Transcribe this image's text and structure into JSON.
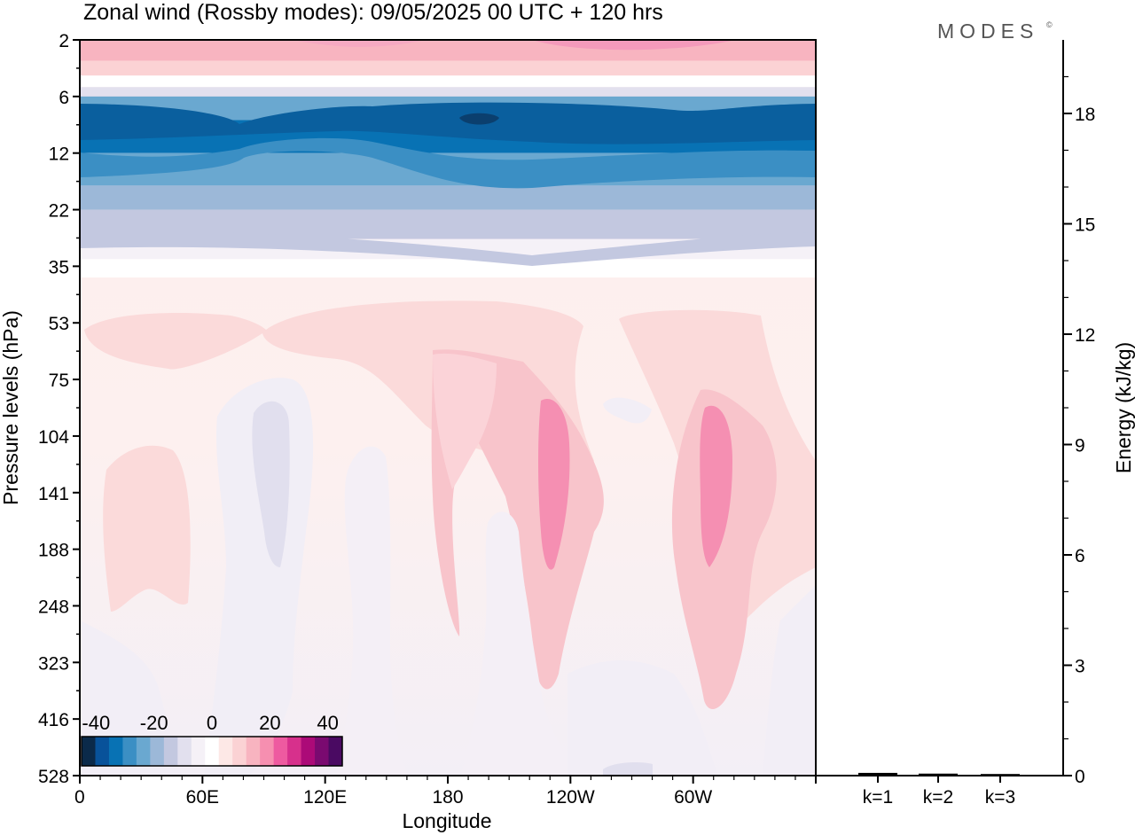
{
  "chart_data": [
    {
      "type": "heatmap",
      "title": "Zonal wind (Rossby modes):  09/05/2025  00 UTC  + 120 hrs",
      "logo_text": "MODES",
      "logo_mark": "©",
      "xlabel": "Longitude",
      "ylabel": "Pressure levels (hPa)",
      "x_ticks": [
        "0",
        "60E",
        "120E",
        "180",
        "120W",
        "60W"
      ],
      "x_tick_degrees": [
        0,
        60,
        120,
        180,
        240,
        300
      ],
      "x_range_degrees": [
        0,
        360
      ],
      "y_ticks": [
        "2",
        "6",
        "12",
        "22",
        "35",
        "53",
        "75",
        "104",
        "141",
        "188",
        "248",
        "323",
        "416",
        "528"
      ],
      "y_scale": "model levels (top 2 hPa, bottom 528 hPa)",
      "colorbar": {
        "ticks": [
          "-40",
          "-20",
          "0",
          "20",
          "40"
        ],
        "range": [
          -45,
          45
        ],
        "colors": [
          "#0b2a4a",
          "#08529a",
          "#0872b4",
          "#3b8fc4",
          "#6aa8d0",
          "#9cb8d8",
          "#c3c8e0",
          "#e2e0ee",
          "#f5f1f7",
          "#ffffff",
          "#fde8e6",
          "#fbd2d4",
          "#f8b4c0",
          "#f68fb0",
          "#ee5aa0",
          "#d7308c",
          "#ac0a78",
          "#7a0a70",
          "#4a0a62"
        ],
        "placement": "bottom-left"
      },
      "field_note": "levels: 2-5 hPa positive (pink), 6-30 hPa negative (blue), below positive/near-zero pink",
      "bands_top": [
        {
          "p_from": 2,
          "p_to": 3,
          "value": 15
        },
        {
          "p_from": 3,
          "p_to": 4,
          "value": 8
        },
        {
          "p_from": 4,
          "p_to": 5,
          "value": 2
        },
        {
          "p_from": 5,
          "p_to": 6,
          "value": -8
        },
        {
          "p_from": 6,
          "p_to": 8,
          "value": -25
        },
        {
          "p_from": 8,
          "p_to": 12,
          "value": -32
        },
        {
          "p_from": 12,
          "p_to": 17,
          "value": -22
        },
        {
          "p_from": 17,
          "p_to": 22,
          "value": -17
        },
        {
          "p_from": 22,
          "p_to": 28,
          "value": -12
        },
        {
          "p_from": 28,
          "p_to": 33,
          "value": -6
        },
        {
          "p_from": 33,
          "p_to": 38,
          "value": -2
        }
      ]
    },
    {
      "type": "bar",
      "ylabel": "Energy (kJ/kg)",
      "categories": [
        "k=1",
        "k=2",
        "k=3"
      ],
      "values": [
        0.05,
        0.03,
        0.02
      ],
      "ylim": [
        0,
        20
      ],
      "y_ticks": [
        "0",
        "3",
        "6",
        "9",
        "12",
        "15",
        "18"
      ],
      "y_tick_values": [
        0,
        3,
        6,
        9,
        12,
        15,
        18
      ]
    }
  ]
}
